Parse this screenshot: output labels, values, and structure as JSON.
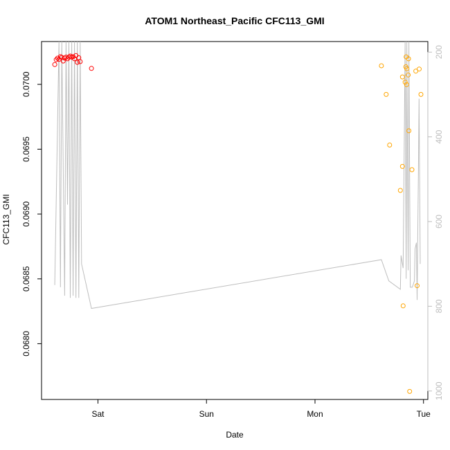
{
  "chart_data": {
    "type": "scatter",
    "title": "ATOM1 Northeast_Pacific CFC113_GMI",
    "xlabel": "Date",
    "ylabel": "CFC113_GMI",
    "x_axis": {
      "ticks": [
        {
          "label": "Sat",
          "value": 1.0
        },
        {
          "label": "Sun",
          "value": 2.0
        },
        {
          "label": "Mon",
          "value": 3.0
        },
        {
          "label": "Tue",
          "value": 4.0
        }
      ],
      "range": [
        0.48,
        4.04
      ]
    },
    "y_axis": {
      "ticks": [
        0.068,
        0.0685,
        0.069,
        0.0695,
        0.07
      ],
      "tick_labels": [
        "0.0680",
        "0.0685",
        "0.0690",
        "0.0695",
        "0.0700"
      ],
      "range": [
        0.06757,
        0.07033
      ]
    },
    "y2_axis": {
      "ticks": [
        200,
        400,
        600,
        800,
        1000
      ],
      "tick_labels": [
        "200",
        "400",
        "600",
        "800",
        "1000"
      ],
      "range": [
        1020,
        175
      ],
      "color": "#bebebe"
    },
    "colors": {
      "red_points": "#ff0000",
      "orange_points": "#ffa500",
      "profile_line": "#bebebe"
    },
    "series": [
      {
        "color": "#ff0000",
        "points": [
          {
            "x": 0.602,
            "y": 0.070153
          },
          {
            "x": 0.615,
            "y": 0.07019
          },
          {
            "x": 0.628,
            "y": 0.070202
          },
          {
            "x": 0.641,
            "y": 0.070192
          },
          {
            "x": 0.654,
            "y": 0.070213
          },
          {
            "x": 0.667,
            "y": 0.070208
          },
          {
            "x": 0.68,
            "y": 0.07018
          },
          {
            "x": 0.693,
            "y": 0.070202
          },
          {
            "x": 0.706,
            "y": 0.07021
          },
          {
            "x": 0.719,
            "y": 0.070197
          },
          {
            "x": 0.732,
            "y": 0.07021
          },
          {
            "x": 0.745,
            "y": 0.070218
          },
          {
            "x": 0.758,
            "y": 0.07021
          },
          {
            "x": 0.771,
            "y": 0.070213
          },
          {
            "x": 0.784,
            "y": 0.070197
          },
          {
            "x": 0.797,
            "y": 0.070222
          },
          {
            "x": 0.81,
            "y": 0.07017
          },
          {
            "x": 0.823,
            "y": 0.070205
          },
          {
            "x": 0.836,
            "y": 0.070175
          },
          {
            "x": 0.94,
            "y": 0.070123
          }
        ]
      },
      {
        "color": "#ffa500",
        "points": [
          {
            "x": 3.612,
            "y": 0.070143
          },
          {
            "x": 3.656,
            "y": 0.069922
          },
          {
            "x": 3.688,
            "y": 0.069532
          },
          {
            "x": 3.787,
            "y": 0.069182
          },
          {
            "x": 3.806,
            "y": 0.069367
          },
          {
            "x": 3.812,
            "y": 0.068292
          },
          {
            "x": 3.806,
            "y": 0.070057
          },
          {
            "x": 3.831,
            "y": 0.070017
          },
          {
            "x": 3.837,
            "y": 0.070135
          },
          {
            "x": 3.84,
            "y": 0.070212
          },
          {
            "x": 3.844,
            "y": 0.069998
          },
          {
            "x": 3.846,
            "y": 0.07012
          },
          {
            "x": 3.859,
            "y": 0.070072
          },
          {
            "x": 3.862,
            "y": 0.070197
          },
          {
            "x": 3.865,
            "y": 0.069642
          },
          {
            "x": 3.872,
            "y": 0.067632
          },
          {
            "x": 3.893,
            "y": 0.069342
          },
          {
            "x": 3.929,
            "y": 0.070102
          },
          {
            "x": 3.941,
            "y": 0.068447
          },
          {
            "x": 3.96,
            "y": 0.070118
          },
          {
            "x": 3.976,
            "y": 0.069922
          }
        ]
      }
    ],
    "profile_line": [
      {
        "x": 0.602,
        "y2": 750
      },
      {
        "x": 0.641,
        "y2": 175
      },
      {
        "x": 0.654,
        "y2": 755
      },
      {
        "x": 0.667,
        "y2": 175
      },
      {
        "x": 0.693,
        "y2": 775
      },
      {
        "x": 0.706,
        "y2": 175
      },
      {
        "x": 0.719,
        "y2": 560
      },
      {
        "x": 0.732,
        "y2": 175
      },
      {
        "x": 0.745,
        "y2": 780
      },
      {
        "x": 0.758,
        "y2": 175
      },
      {
        "x": 0.771,
        "y2": 775
      },
      {
        "x": 0.784,
        "y2": 175
      },
      {
        "x": 0.797,
        "y2": 780
      },
      {
        "x": 0.81,
        "y2": 175
      },
      {
        "x": 0.823,
        "y2": 780
      },
      {
        "x": 0.836,
        "y2": 175
      },
      {
        "x": 0.849,
        "y2": 700
      },
      {
        "x": 0.94,
        "y2": 805
      },
      {
        "x": 3.612,
        "y2": 690
      },
      {
        "x": 3.68,
        "y2": 740
      },
      {
        "x": 3.787,
        "y2": 760
      },
      {
        "x": 3.793,
        "y2": 680
      },
      {
        "x": 3.812,
        "y2": 710
      },
      {
        "x": 3.831,
        "y2": 175
      },
      {
        "x": 3.84,
        "y2": 735
      },
      {
        "x": 3.846,
        "y2": 175
      },
      {
        "x": 3.859,
        "y2": 715
      },
      {
        "x": 3.865,
        "y2": 175
      },
      {
        "x": 3.878,
        "y2": 755
      },
      {
        "x": 3.897,
        "y2": 755
      },
      {
        "x": 3.916,
        "y2": 740
      },
      {
        "x": 3.922,
        "y2": 665
      },
      {
        "x": 3.935,
        "y2": 650
      },
      {
        "x": 3.941,
        "y2": 785
      },
      {
        "x": 3.953,
        "y2": 475
      },
      {
        "x": 3.959,
        "y2": 310
      },
      {
        "x": 3.97,
        "y2": 700
      }
    ]
  }
}
